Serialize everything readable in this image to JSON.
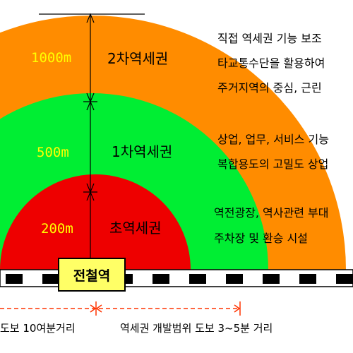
{
  "zones": [
    {
      "name": "2차역세권",
      "distance": "1000m",
      "color": "#ff8c00",
      "distance_color": "#ffff00",
      "desc": [
        "직접 역세권 기능 보조",
        "타교통수단을 활용하여",
        "주거지역의 중심, 근린"
      ]
    },
    {
      "name": "1차역세권",
      "distance": "500m",
      "color": "#00ee33",
      "distance_color": "#ffff00",
      "desc": [
        "상업, 업무, 서비스 기능",
        "복합용도의 고밀도 상업"
      ]
    },
    {
      "name": "초역세권",
      "distance": "200m",
      "color": "#ee0000",
      "distance_color": "#ffff00",
      "desc": [
        "역전광장, 역사관련 부대",
        "주차장 및 환승 시설"
      ]
    }
  ],
  "station_label": "전철역",
  "bottom_labels": {
    "left": "도보 10여분거리",
    "right": "역세권 개발범위 도보 3~5분 거리"
  }
}
